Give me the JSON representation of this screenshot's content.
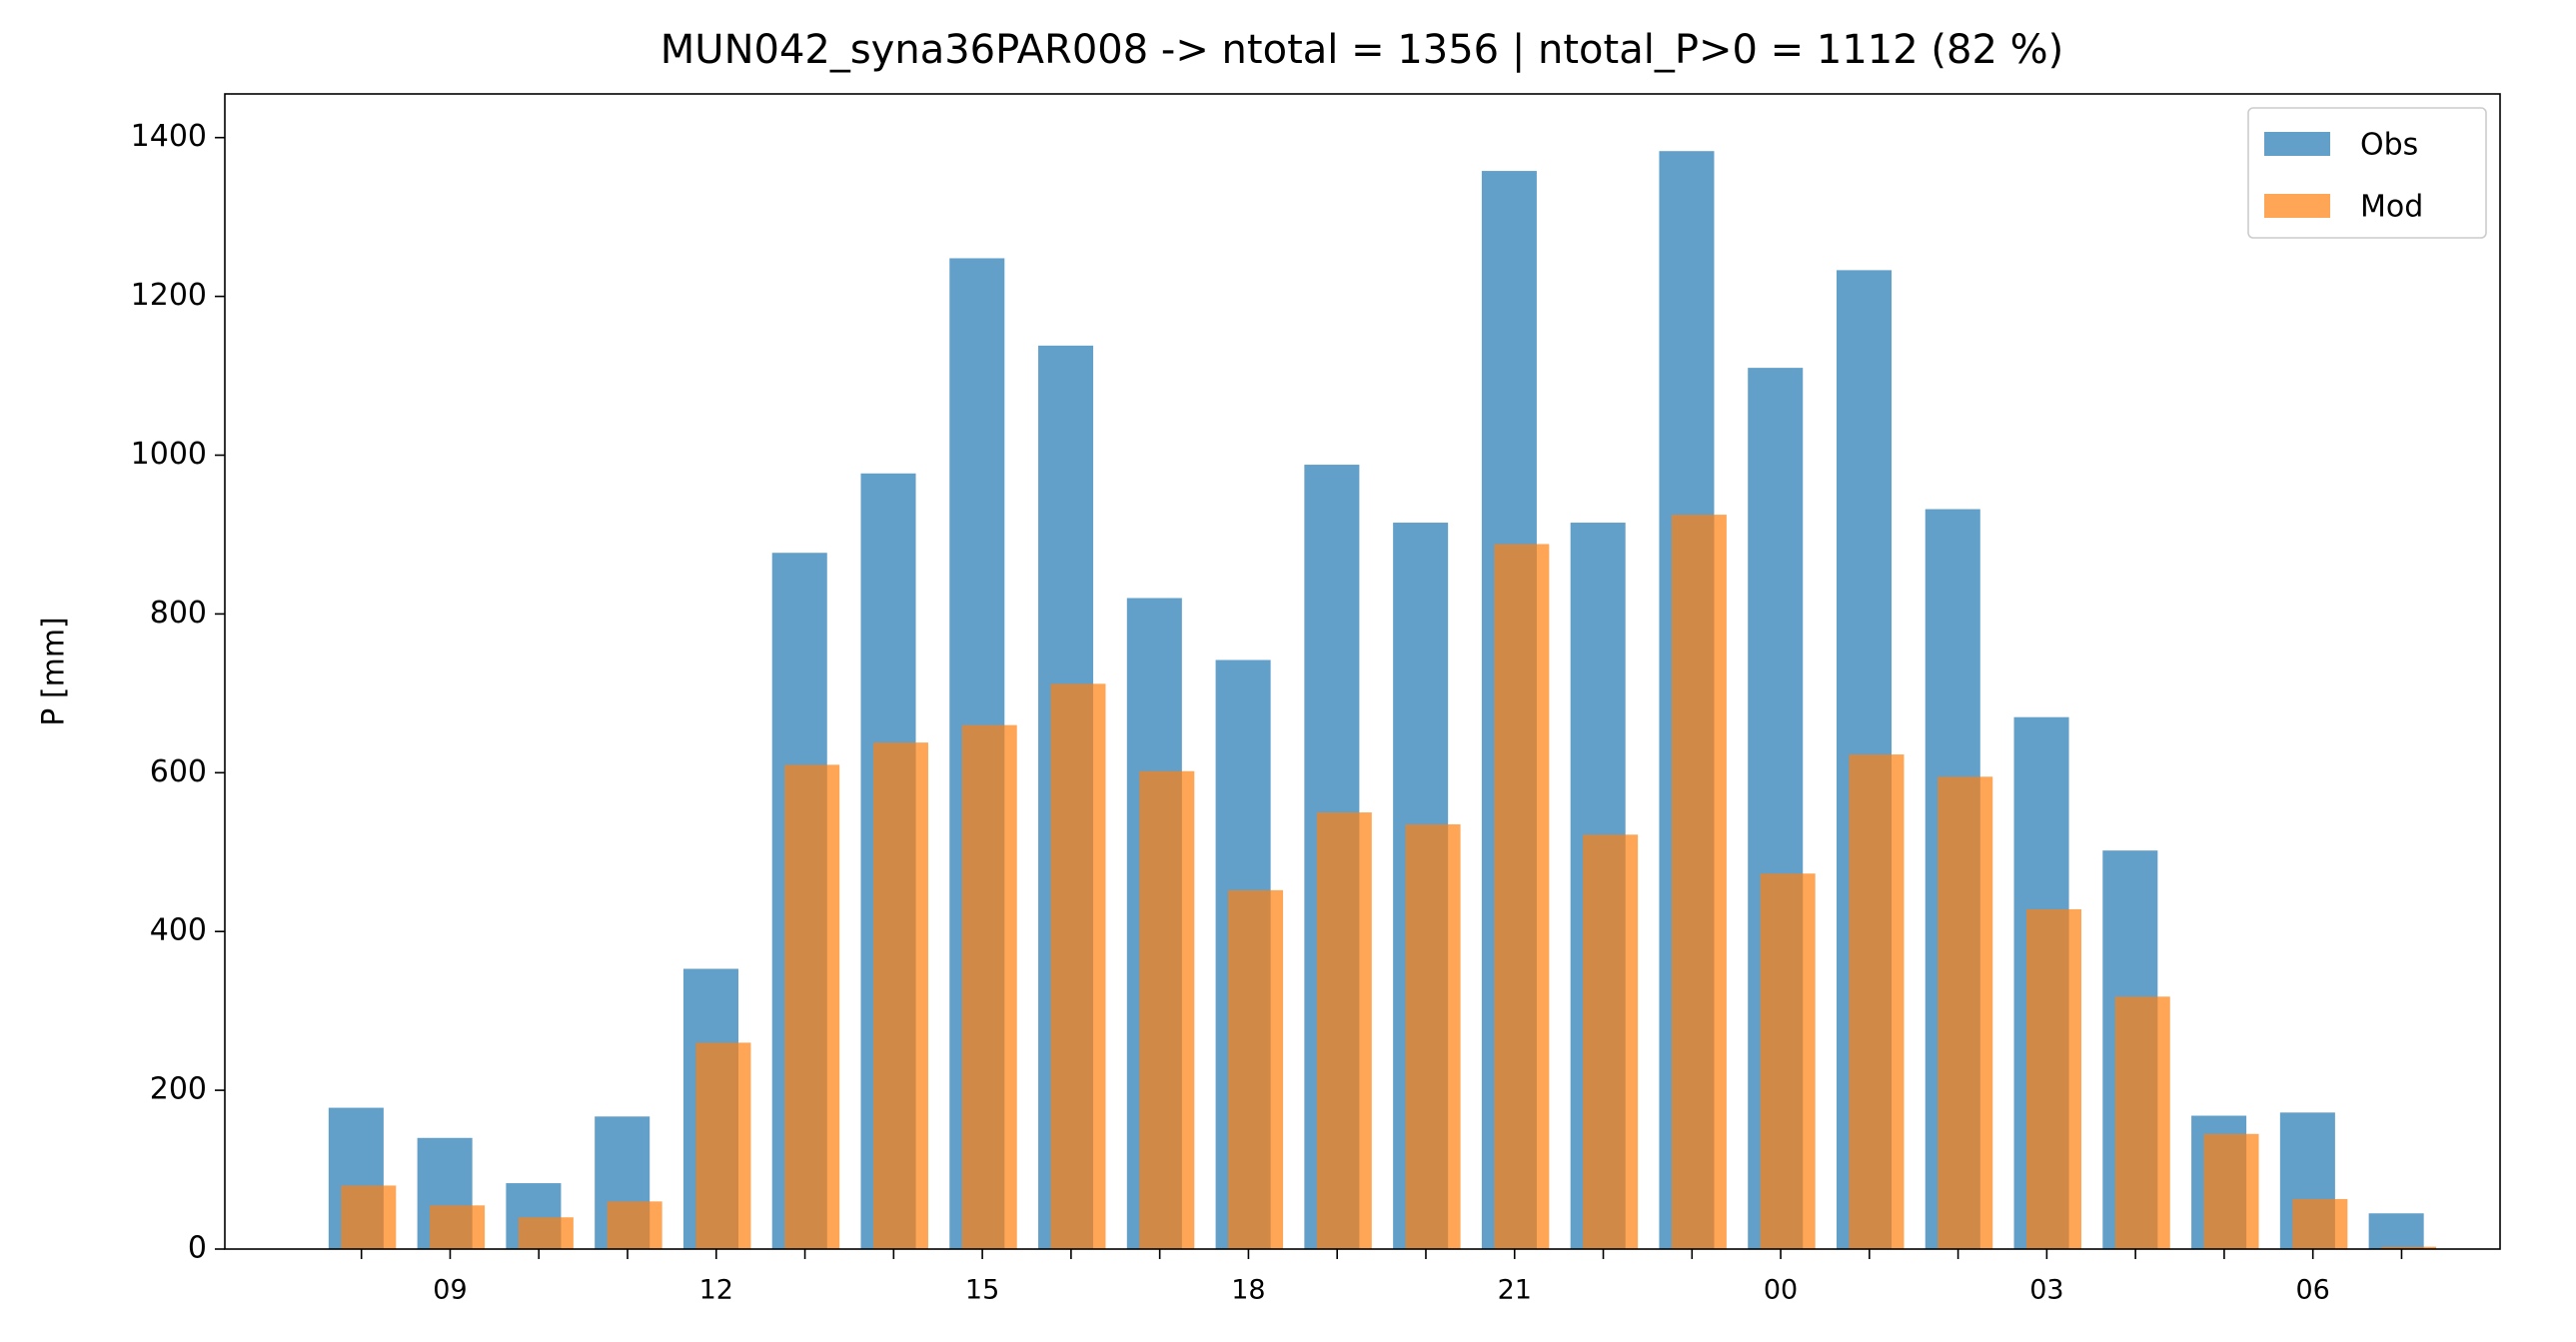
{
  "chart_data": {
    "type": "bar",
    "title": "MUN042_syna36PAR008 -> ntotal = 1356 | ntotal_P>0 = 1112 (82 %)",
    "y_label": "P [mm]",
    "categories": [
      null,
      "09",
      null,
      null,
      "12",
      null,
      null,
      "15",
      null,
      null,
      "18",
      null,
      null,
      "21",
      null,
      null,
      "00",
      null,
      null,
      "03",
      null,
      null,
      "06",
      null
    ],
    "series": [
      {
        "name": "Obs",
        "color": "#1f77b4",
        "values": [
          178,
          140,
          83,
          167,
          353,
          877,
          977,
          1248,
          1138,
          820,
          742,
          988,
          915,
          1358,
          915,
          1383,
          1110,
          1233,
          932,
          670,
          502,
          168,
          172,
          45
        ]
      },
      {
        "name": "Mod",
        "color": "#ff7f0e",
        "values": [
          80,
          55,
          40,
          60,
          260,
          610,
          638,
          660,
          712,
          602,
          452,
          550,
          535,
          888,
          522,
          925,
          473,
          623,
          595,
          428,
          318,
          145,
          63,
          3
        ]
      }
    ],
    "ylim": [
      0,
      1455
    ],
    "yticks": [
      0,
      200,
      400,
      600,
      800,
      1000,
      1200,
      1400
    ],
    "grid": false,
    "legend": "upper right"
  }
}
